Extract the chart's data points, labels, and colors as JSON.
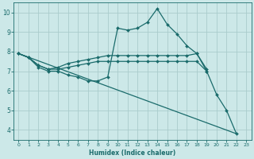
{
  "title": "",
  "xlabel": "Humidex (Indice chaleur)",
  "bg_color": "#cce8e8",
  "grid_color": "#aacccc",
  "line_color": "#1a6b6b",
  "xlim": [
    -0.5,
    23.5
  ],
  "ylim": [
    3.5,
    10.5
  ],
  "yticks": [
    4,
    5,
    6,
    7,
    8,
    9,
    10
  ],
  "xticks": [
    0,
    1,
    2,
    3,
    4,
    5,
    6,
    7,
    8,
    9,
    10,
    11,
    12,
    13,
    14,
    15,
    16,
    17,
    18,
    19,
    20,
    21,
    22,
    23
  ],
  "series": [
    {
      "x": [
        0,
        1,
        2,
        3,
        4,
        5,
        6,
        7,
        8,
        9,
        10,
        11,
        12,
        13,
        14,
        15,
        16,
        17,
        18,
        19,
        20,
        21,
        22
      ],
      "y": [
        7.9,
        7.7,
        7.2,
        7.0,
        7.0,
        6.8,
        6.7,
        6.5,
        6.5,
        6.7,
        9.2,
        9.1,
        9.2,
        9.5,
        10.2,
        9.4,
        8.9,
        8.3,
        7.9,
        7.0,
        5.8,
        5.0,
        3.8
      ],
      "marker": true
    },
    {
      "x": [
        0,
        1,
        2,
        3,
        4,
        5,
        6,
        7,
        8,
        9,
        10,
        11,
        12,
        13,
        14,
        15,
        16,
        17,
        18,
        19
      ],
      "y": [
        7.9,
        7.7,
        7.3,
        7.1,
        7.2,
        7.4,
        7.5,
        7.6,
        7.7,
        7.8,
        7.8,
        7.8,
        7.8,
        7.8,
        7.8,
        7.8,
        7.8,
        7.8,
        7.9,
        7.1
      ],
      "marker": true
    },
    {
      "x": [
        0,
        1,
        2,
        3,
        4,
        5,
        6,
        7,
        8,
        9,
        10,
        11,
        12,
        13,
        14,
        15,
        16,
        17,
        18,
        19
      ],
      "y": [
        7.9,
        7.7,
        7.3,
        7.1,
        7.1,
        7.2,
        7.3,
        7.4,
        7.5,
        7.5,
        7.5,
        7.5,
        7.5,
        7.5,
        7.5,
        7.5,
        7.5,
        7.5,
        7.5,
        7.0
      ],
      "marker": true
    },
    {
      "x": [
        0,
        22
      ],
      "y": [
        7.9,
        3.8
      ],
      "marker": false
    }
  ],
  "marker_style": "D",
  "markersize": 2.0,
  "linewidth": 0.9,
  "xlabel_fontsize": 5.5,
  "tick_fontsize_x": 4.5,
  "tick_fontsize_y": 5.5
}
